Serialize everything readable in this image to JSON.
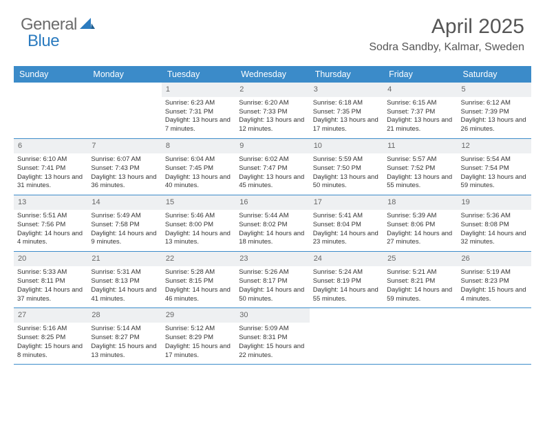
{
  "brand": {
    "part1": "General",
    "part2": "Blue"
  },
  "title": "April 2025",
  "location": "Sodra Sandby, Kalmar, Sweden",
  "colors": {
    "header_bg": "#3b8bc9",
    "header_text": "#ffffff",
    "daynum_bg": "#eef0f2",
    "border": "#3b8bc9",
    "logo_gray": "#6b6b6b",
    "logo_blue": "#2b7bbf"
  },
  "dayNames": [
    "Sunday",
    "Monday",
    "Tuesday",
    "Wednesday",
    "Thursday",
    "Friday",
    "Saturday"
  ],
  "leadingBlanks": 2,
  "days": [
    {
      "n": 1,
      "sr": "6:23 AM",
      "ss": "7:31 PM",
      "dl": "13 hours and 7 minutes."
    },
    {
      "n": 2,
      "sr": "6:20 AM",
      "ss": "7:33 PM",
      "dl": "13 hours and 12 minutes."
    },
    {
      "n": 3,
      "sr": "6:18 AM",
      "ss": "7:35 PM",
      "dl": "13 hours and 17 minutes."
    },
    {
      "n": 4,
      "sr": "6:15 AM",
      "ss": "7:37 PM",
      "dl": "13 hours and 21 minutes."
    },
    {
      "n": 5,
      "sr": "6:12 AM",
      "ss": "7:39 PM",
      "dl": "13 hours and 26 minutes."
    },
    {
      "n": 6,
      "sr": "6:10 AM",
      "ss": "7:41 PM",
      "dl": "13 hours and 31 minutes."
    },
    {
      "n": 7,
      "sr": "6:07 AM",
      "ss": "7:43 PM",
      "dl": "13 hours and 36 minutes."
    },
    {
      "n": 8,
      "sr": "6:04 AM",
      "ss": "7:45 PM",
      "dl": "13 hours and 40 minutes."
    },
    {
      "n": 9,
      "sr": "6:02 AM",
      "ss": "7:47 PM",
      "dl": "13 hours and 45 minutes."
    },
    {
      "n": 10,
      "sr": "5:59 AM",
      "ss": "7:50 PM",
      "dl": "13 hours and 50 minutes."
    },
    {
      "n": 11,
      "sr": "5:57 AM",
      "ss": "7:52 PM",
      "dl": "13 hours and 55 minutes."
    },
    {
      "n": 12,
      "sr": "5:54 AM",
      "ss": "7:54 PM",
      "dl": "13 hours and 59 minutes."
    },
    {
      "n": 13,
      "sr": "5:51 AM",
      "ss": "7:56 PM",
      "dl": "14 hours and 4 minutes."
    },
    {
      "n": 14,
      "sr": "5:49 AM",
      "ss": "7:58 PM",
      "dl": "14 hours and 9 minutes."
    },
    {
      "n": 15,
      "sr": "5:46 AM",
      "ss": "8:00 PM",
      "dl": "14 hours and 13 minutes."
    },
    {
      "n": 16,
      "sr": "5:44 AM",
      "ss": "8:02 PM",
      "dl": "14 hours and 18 minutes."
    },
    {
      "n": 17,
      "sr": "5:41 AM",
      "ss": "8:04 PM",
      "dl": "14 hours and 23 minutes."
    },
    {
      "n": 18,
      "sr": "5:39 AM",
      "ss": "8:06 PM",
      "dl": "14 hours and 27 minutes."
    },
    {
      "n": 19,
      "sr": "5:36 AM",
      "ss": "8:08 PM",
      "dl": "14 hours and 32 minutes."
    },
    {
      "n": 20,
      "sr": "5:33 AM",
      "ss": "8:11 PM",
      "dl": "14 hours and 37 minutes."
    },
    {
      "n": 21,
      "sr": "5:31 AM",
      "ss": "8:13 PM",
      "dl": "14 hours and 41 minutes."
    },
    {
      "n": 22,
      "sr": "5:28 AM",
      "ss": "8:15 PM",
      "dl": "14 hours and 46 minutes."
    },
    {
      "n": 23,
      "sr": "5:26 AM",
      "ss": "8:17 PM",
      "dl": "14 hours and 50 minutes."
    },
    {
      "n": 24,
      "sr": "5:24 AM",
      "ss": "8:19 PM",
      "dl": "14 hours and 55 minutes."
    },
    {
      "n": 25,
      "sr": "5:21 AM",
      "ss": "8:21 PM",
      "dl": "14 hours and 59 minutes."
    },
    {
      "n": 26,
      "sr": "5:19 AM",
      "ss": "8:23 PM",
      "dl": "15 hours and 4 minutes."
    },
    {
      "n": 27,
      "sr": "5:16 AM",
      "ss": "8:25 PM",
      "dl": "15 hours and 8 minutes."
    },
    {
      "n": 28,
      "sr": "5:14 AM",
      "ss": "8:27 PM",
      "dl": "15 hours and 13 minutes."
    },
    {
      "n": 29,
      "sr": "5:12 AM",
      "ss": "8:29 PM",
      "dl": "15 hours and 17 minutes."
    },
    {
      "n": 30,
      "sr": "5:09 AM",
      "ss": "8:31 PM",
      "dl": "15 hours and 22 minutes."
    }
  ],
  "labels": {
    "sunrise": "Sunrise:",
    "sunset": "Sunset:",
    "daylight": "Daylight:"
  }
}
